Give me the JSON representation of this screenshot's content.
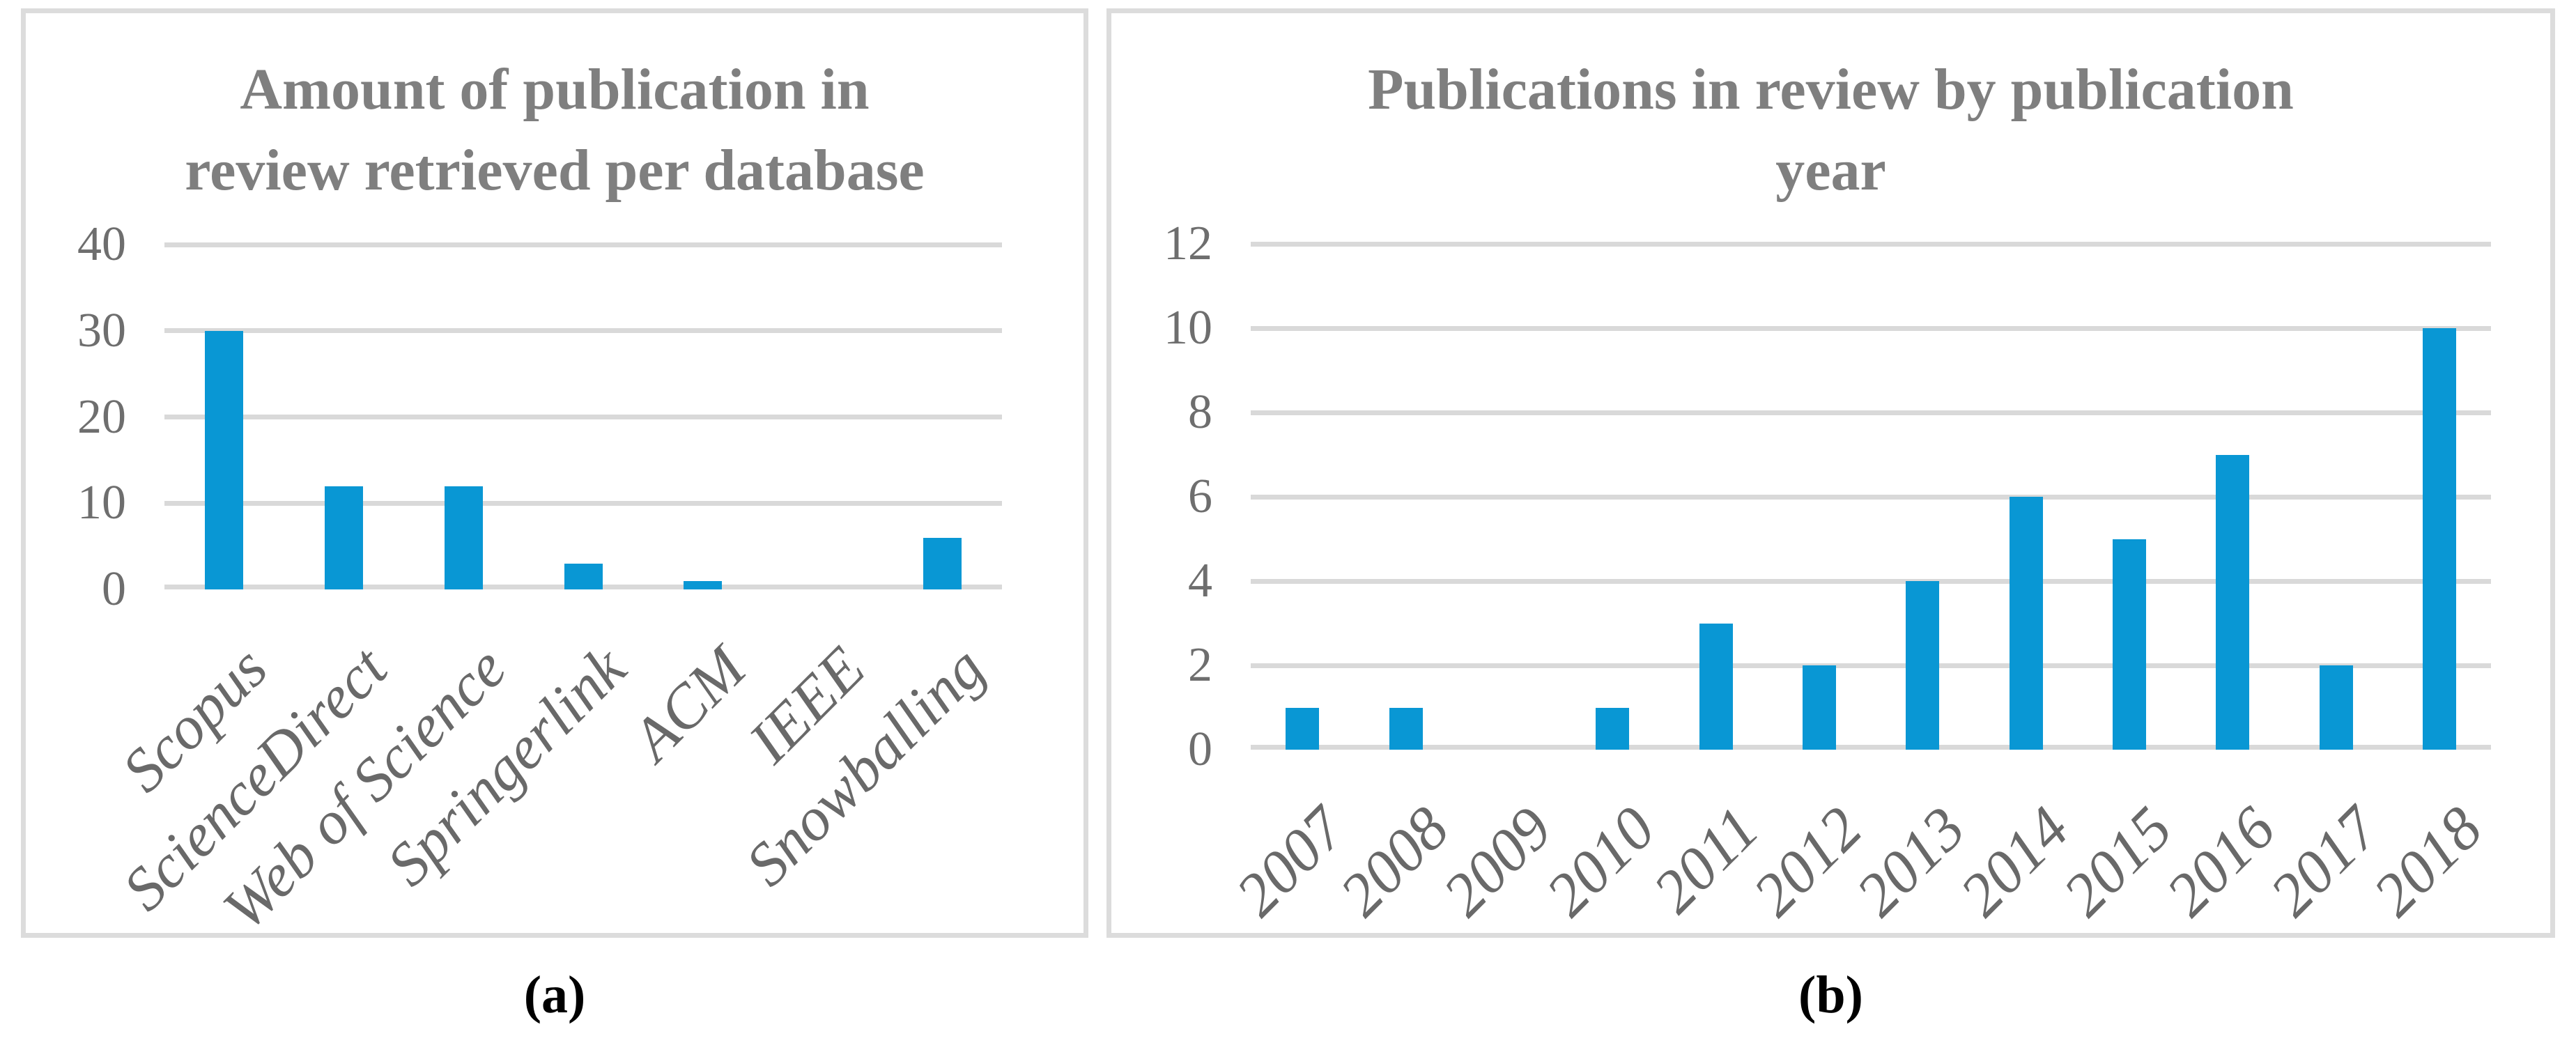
{
  "figure": {
    "caption_a": "(a)",
    "caption_b": "(b)"
  },
  "colors": {
    "bar": "#0997d4",
    "gridline": "#d9d9d9",
    "panel_border": "#dcdcdc",
    "title_text": "#7f7f7f",
    "axis_text": "#6e6e6e",
    "caption_text": "#000000"
  },
  "chart_data": [
    {
      "type": "bar",
      "title": "Amount of publication in review retrieved per database",
      "title_lines": [
        "Amount of publication in",
        "review retrieved per database"
      ],
      "categories": [
        "Scopus",
        "ScienceDirect",
        "Web of Science",
        "Springerlink",
        "ACM",
        "IEEE",
        "Snowballing"
      ],
      "values": [
        30,
        12,
        12,
        3,
        1,
        0,
        6
      ],
      "xlabel": "",
      "ylabel": "",
      "ylim": [
        0,
        40
      ],
      "yticks": [
        0,
        10,
        20,
        30,
        40
      ],
      "grid": true,
      "legend": "none",
      "bar_color": "#0997d4"
    },
    {
      "type": "bar",
      "title": "Publications in review by publication year",
      "title_lines": [
        "Publications in review by publication",
        "year"
      ],
      "categories": [
        "2007",
        "2008",
        "2009",
        "2010",
        "2011",
        "2012",
        "2013",
        "2014",
        "2015",
        "2016",
        "2017",
        "2018"
      ],
      "values": [
        1,
        1,
        0,
        1,
        3,
        2,
        4,
        6,
        5,
        7,
        2,
        10
      ],
      "xlabel": "",
      "ylabel": "",
      "ylim": [
        0,
        12
      ],
      "yticks": [
        0,
        2,
        4,
        6,
        8,
        10,
        12
      ],
      "grid": true,
      "legend": "none",
      "bar_color": "#0997d4"
    }
  ]
}
